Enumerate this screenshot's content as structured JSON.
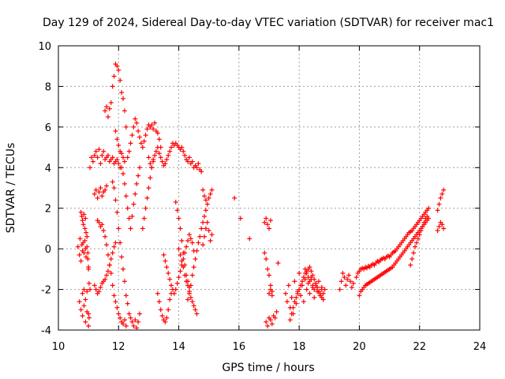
{
  "chart_data": {
    "type": "scatter",
    "title": "Day 129 of 2024, Sidereal Day-to-day VTEC variation (SDTVAR) for receiver mac1",
    "xlabel": "GPS time / hours",
    "ylabel": "SDTVAR / TECUs",
    "xlim": [
      10,
      24
    ],
    "ylim": [
      -4,
      10
    ],
    "xticks": [
      "10",
      "12",
      "14",
      "16",
      "18",
      "20",
      "22",
      "24"
    ],
    "yticks": [
      "-4",
      "-2",
      "0",
      "2",
      "4",
      "6",
      "8",
      "10"
    ],
    "grid": true,
    "marker": "plus",
    "color": "#ff0000",
    "series": [
      {
        "name": "SDTVAR",
        "x": [
          10.65,
          10.7,
          10.72,
          10.75,
          10.78,
          10.8,
          10.82,
          10.85,
          10.88,
          10.9,
          10.92,
          10.95,
          10.98,
          11.0,
          10.7,
          10.75,
          10.8,
          10.85,
          10.9,
          10.95,
          11.0,
          11.02,
          10.75,
          10.78,
          10.8,
          10.83,
          10.85,
          10.88,
          10.9,
          10.92,
          10.95,
          10.98,
          11.0,
          11.02,
          11.05,
          10.8,
          10.85,
          10.9,
          10.95,
          11.0,
          11.05,
          11.1,
          11.15,
          11.2,
          11.25,
          11.3,
          11.35,
          11.4,
          11.45,
          11.5,
          11.55,
          11.6,
          11.65,
          11.7,
          11.75,
          11.8,
          11.85,
          11.9,
          11.95,
          12.0,
          12.05,
          11.2,
          11.25,
          11.3,
          11.35,
          11.4,
          11.45,
          11.5,
          11.55,
          11.6,
          11.3,
          11.35,
          11.4,
          11.45,
          11.5,
          11.55,
          11.6,
          11.65,
          11.7,
          11.75,
          11.8,
          11.85,
          11.9,
          11.95,
          12.0,
          12.05,
          12.1,
          12.15,
          12.2,
          12.25,
          11.2,
          11.25,
          11.3,
          11.35,
          11.4,
          11.45,
          11.5,
          11.55,
          11.6,
          11.65,
          11.7,
          11.75,
          11.8,
          11.85,
          11.9,
          11.55,
          11.6,
          11.65,
          11.7,
          11.75,
          11.8,
          11.85,
          11.9,
          11.95,
          12.0,
          12.05,
          12.1,
          12.15,
          12.2,
          12.25,
          11.8,
          11.85,
          11.9,
          11.95,
          12.0,
          12.05,
          12.1,
          12.15,
          12.2,
          12.25,
          12.3,
          12.35,
          12.4,
          12.45,
          12.5,
          12.55,
          12.6,
          12.65,
          12.7,
          12.1,
          12.15,
          12.2,
          12.25,
          12.3,
          12.35,
          12.4,
          12.45,
          12.5,
          12.55,
          12.6,
          12.65,
          12.7,
          11.9,
          11.95,
          12.0,
          12.05,
          12.1,
          12.15,
          12.2,
          12.3,
          12.35,
          12.4,
          12.45,
          12.5,
          12.55,
          12.6,
          12.65,
          12.7,
          12.75,
          12.8,
          12.85,
          12.9,
          12.95,
          13.0,
          13.05,
          13.1,
          13.15,
          13.2,
          13.25,
          13.3,
          13.35,
          13.4,
          12.8,
          12.85,
          12.9,
          12.95,
          13.0,
          13.05,
          13.1,
          13.15,
          13.0,
          13.05,
          13.1,
          13.15,
          13.2,
          13.25,
          13.3,
          13.35,
          13.4,
          13.45,
          13.5,
          13.55,
          13.6,
          13.65,
          13.7,
          13.75,
          13.8,
          13.85,
          13.9,
          13.95,
          14.0,
          14.05,
          14.1,
          14.15,
          14.2,
          14.25,
          14.3,
          14.35,
          14.4,
          14.45,
          14.5,
          14.55,
          14.6,
          14.65,
          14.7,
          14.75,
          14.8,
          14.85,
          14.9,
          13.3,
          13.35,
          13.4,
          13.45,
          13.5,
          13.55,
          13.6,
          13.65,
          13.7,
          13.75,
          13.5,
          13.55,
          13.6,
          13.65,
          13.7,
          13.75,
          13.8,
          13.85,
          13.9,
          13.95,
          14.0,
          14.05,
          14.1,
          14.15,
          14.2,
          14.25,
          14.3,
          14.35,
          14.4,
          14.45,
          14.5,
          13.9,
          13.95,
          14.0,
          14.05,
          14.1,
          14.15,
          14.2,
          14.25,
          14.3,
          14.35,
          14.0,
          14.05,
          14.1,
          14.15,
          14.2,
          14.25,
          14.3,
          14.35,
          14.4,
          14.45,
          14.5,
          14.55,
          14.6,
          14.3,
          14.35,
          14.4,
          14.45,
          14.5,
          14.55,
          14.6,
          14.65,
          14.7,
          14.75,
          14.8,
          14.85,
          14.9,
          14.95,
          15.0,
          15.05,
          15.1,
          14.8,
          14.85,
          14.9,
          14.95,
          15.0,
          15.05,
          15.1,
          15.85,
          16.05,
          16.35,
          16.85,
          16.9,
          16.95,
          17.0,
          17.05,
          17.1,
          16.85,
          16.9,
          16.95,
          17.0,
          17.05,
          16.9,
          16.95,
          17.0,
          17.05,
          17.1,
          17.15,
          17.2,
          17.25,
          17.3,
          17.0,
          17.05,
          17.1,
          17.55,
          17.6,
          17.65,
          17.7,
          17.75,
          17.8,
          17.85,
          17.9,
          17.95,
          18.0,
          18.05,
          18.1,
          18.15,
          18.2,
          18.25,
          18.3,
          18.35,
          18.4,
          18.45,
          18.5,
          18.55,
          18.6,
          18.65,
          18.7,
          18.75,
          18.8,
          18.85,
          17.7,
          17.75,
          17.8,
          17.85,
          17.9,
          17.95,
          18.0,
          18.05,
          18.1,
          18.15,
          18.2,
          18.25,
          18.3,
          18.35,
          18.4,
          18.45,
          18.5,
          18.55,
          18.6,
          18.65,
          18.7,
          18.75,
          18.8,
          18.2,
          18.25,
          18.3,
          18.35,
          18.4,
          18.45,
          18.5,
          18.55,
          18.6,
          18.65,
          18.7,
          18.75,
          19.35,
          19.4,
          19.45,
          19.5,
          19.55,
          19.6,
          19.65,
          19.7,
          19.75,
          19.8,
          19.9,
          19.95,
          20.0,
          20.05,
          20.1,
          20.15,
          20.2,
          20.25,
          20.3,
          20.35,
          20.4,
          20.45,
          20.5,
          20.55,
          20.6,
          20.65,
          20.7,
          20.75,
          20.8,
          20.85,
          20.9,
          20.95,
          21.0,
          21.05,
          21.1,
          21.15,
          21.2,
          21.25,
          21.3,
          21.35,
          21.4,
          21.45,
          21.5,
          21.55,
          21.6,
          21.65,
          21.7,
          21.75,
          21.8,
          21.85,
          21.9,
          21.95,
          22.0,
          22.05,
          22.1,
          22.15,
          22.2,
          22.25,
          22.3,
          20.0,
          20.05,
          20.1,
          20.15,
          20.2,
          20.25,
          20.3,
          20.35,
          20.4,
          20.45,
          20.5,
          20.55,
          20.6,
          20.65,
          20.7,
          20.75,
          20.8,
          20.85,
          20.9,
          20.95,
          21.0,
          21.05,
          21.1,
          21.15,
          21.2,
          21.25,
          21.3,
          21.35,
          21.4,
          21.45,
          21.5,
          21.55,
          21.6,
          21.65,
          21.7,
          21.75,
          21.8,
          21.85,
          21.9,
          21.95,
          22.0,
          22.05,
          22.1,
          22.15,
          22.2,
          22.25,
          22.3,
          21.7,
          21.75,
          21.8,
          21.85,
          21.9,
          21.95,
          22.0,
          22.05,
          22.1,
          22.15,
          22.2,
          22.25,
          22.6,
          22.65,
          22.7,
          22.75,
          22.8,
          22.6,
          22.65,
          22.7,
          22.75,
          22.8
        ],
        "y": [
          0.1,
          -0.3,
          0.5,
          -0.6,
          0.2,
          -0.1,
          0.3,
          -0.2,
          0.4,
          0.0,
          -0.4,
          0.1,
          -0.5,
          -0.9,
          -2.6,
          -3.0,
          -3.3,
          -2.8,
          -3.6,
          -3.1,
          -3.8,
          -3.4,
          1.8,
          1.6,
          1.4,
          1.2,
          1.7,
          1.0,
          1.5,
          0.8,
          0.6,
          -0.2,
          -1.0,
          -1.7,
          -2.0,
          -2.2,
          -2.0,
          -2.5,
          -2.1,
          -3.2,
          4.0,
          4.5,
          4.3,
          4.6,
          4.8,
          4.5,
          4.9,
          4.2,
          4.6,
          4.8,
          4.4,
          4.5,
          4.6,
          4.3,
          4.4,
          4.5,
          4.2,
          4.3,
          4.4,
          4.2,
          4.0,
          2.7,
          2.9,
          2.5,
          2.8,
          3.0,
          2.6,
          2.8,
          2.9,
          3.1,
          1.4,
          1.3,
          1.1,
          1.2,
          0.9,
          0.6,
          0.2,
          -0.3,
          -0.8,
          -1.2,
          -1.8,
          -2.3,
          -2.6,
          -2.9,
          -3.2,
          -3.4,
          -3.6,
          -3.7,
          -3.5,
          -3.8,
          -1.8,
          -2.0,
          -2.2,
          -2.1,
          -1.9,
          -1.7,
          -1.6,
          -1.5,
          -1.3,
          -1.1,
          -0.8,
          -0.5,
          -0.2,
          0.1,
          0.3,
          6.8,
          7.0,
          6.5,
          6.9,
          7.2,
          8.0,
          8.5,
          9.1,
          9.0,
          8.8,
          8.3,
          7.7,
          7.4,
          6.8,
          6.0,
          3.3,
          3.0,
          2.4,
          1.8,
          1.0,
          0.3,
          -0.4,
          -1.0,
          -1.6,
          -2.3,
          -2.7,
          -3.2,
          -3.4,
          -3.6,
          -3.8,
          -3.5,
          -3.9,
          -3.6,
          -3.2,
          4.0,
          3.7,
          3.2,
          2.6,
          2.0,
          1.5,
          1.0,
          1.6,
          2.2,
          2.7,
          3.2,
          3.6,
          4.0,
          5.8,
          5.4,
          5.1,
          4.8,
          4.7,
          4.5,
          4.3,
          4.5,
          4.8,
          5.2,
          5.6,
          6.0,
          6.4,
          6.2,
          5.8,
          5.5,
          5.2,
          5.0,
          5.3,
          5.6,
          5.9,
          6.1,
          6.0,
          6.1,
          5.9,
          6.2,
          5.8,
          5.7,
          5.4,
          5.0,
          1.0,
          1.5,
          2.0,
          2.5,
          3.0,
          3.5,
          4.0,
          4.4,
          4.5,
          4.2,
          4.0,
          4.3,
          4.6,
          4.8,
          5.0,
          4.7,
          4.5,
          4.3,
          4.1,
          4.2,
          4.4,
          4.6,
          4.8,
          5.0,
          5.2,
          5.1,
          5.2,
          5.1,
          5.0,
          4.9,
          5.0,
          4.8,
          4.6,
          4.4,
          4.3,
          4.5,
          4.2,
          4.3,
          4.0,
          4.1,
          4.0,
          4.2,
          3.9,
          3.8,
          2.9,
          2.6,
          2.4,
          -2.2,
          -2.6,
          -3.0,
          -3.3,
          -3.5,
          -3.6,
          -3.4,
          -3.0,
          -2.5,
          -2.2,
          -0.3,
          -0.6,
          -0.9,
          -1.2,
          -1.5,
          -1.8,
          -2.0,
          -2.2,
          -2.0,
          -1.7,
          -1.4,
          -1.1,
          -0.8,
          -0.5,
          -0.2,
          0.1,
          0.4,
          0.7,
          0.5,
          0.3,
          -0.1,
          2.3,
          1.9,
          1.5,
          1.0,
          0.4,
          -0.2,
          -0.8,
          -1.3,
          -1.6,
          -1.9,
          0.0,
          -0.3,
          -0.6,
          -0.9,
          -1.3,
          -1.6,
          -1.8,
          -2.1,
          -2.4,
          -2.6,
          -2.8,
          -3.0,
          -3.2,
          -2.5,
          -2.2,
          -1.8,
          -1.3,
          -0.9,
          -0.5,
          -0.1,
          0.3,
          0.6,
          1.0,
          1.3,
          1.6,
          1.9,
          2.2,
          2.5,
          2.7,
          2.9,
          0.2,
          0.6,
          1.0,
          1.3,
          0.9,
          0.4,
          0.7,
          2.5,
          1.5,
          0.5,
          -0.2,
          -0.5,
          -1.0,
          -1.3,
          -1.8,
          -2.1,
          1.3,
          1.5,
          1.2,
          1.0,
          1.4,
          -3.6,
          -3.8,
          -3.4,
          -3.5,
          -3.7,
          -3.3,
          -3.4,
          -3.1,
          -0.7,
          -2.2,
          -2.0,
          -2.3,
          -2.2,
          -2.6,
          -1.8,
          -2.9,
          -2.4,
          -3.2,
          -1.6,
          -2.7,
          -2.1,
          -1.2,
          -2.3,
          -1.8,
          -2.6,
          -1.5,
          -2.0,
          -1.7,
          -2.2,
          -1.4,
          -1.9,
          -2.4,
          -1.8,
          -2.1,
          -1.6,
          -2.3,
          -1.9,
          -2.2,
          -2.0,
          -3.5,
          -3.2,
          -2.9,
          -2.6,
          -2.4,
          -2.2,
          -2.0,
          -1.8,
          -1.6,
          -1.4,
          -1.2,
          -1.1,
          -1.0,
          -0.9,
          -1.1,
          -1.3,
          -1.5,
          -1.7,
          -1.9,
          -2.1,
          -2.3,
          -2.4,
          -2.5,
          -1.0,
          -1.2,
          -1.4,
          -1.6,
          -1.5,
          -1.8,
          -2.0,
          -1.7,
          -1.9,
          -2.1,
          -2.2,
          -2.0,
          -2.0,
          -1.6,
          -1.2,
          -1.4,
          -1.8,
          -1.5,
          -1.3,
          -1.6,
          -1.9,
          -1.7,
          -1.4,
          -1.2,
          -1.1,
          -1.0,
          -0.95,
          -1.0,
          -0.9,
          -0.95,
          -0.85,
          -0.9,
          -0.8,
          -0.75,
          -0.8,
          -0.7,
          -0.6,
          -0.65,
          -0.55,
          -0.5,
          -0.45,
          -0.5,
          -0.4,
          -0.35,
          -0.4,
          -0.3,
          -0.2,
          -0.15,
          -0.1,
          0.0,
          0.1,
          0.2,
          0.3,
          0.4,
          0.5,
          0.6,
          0.7,
          0.8,
          0.85,
          0.9,
          1.0,
          1.1,
          1.2,
          1.3,
          1.4,
          1.5,
          1.6,
          1.7,
          1.8,
          1.9,
          2.0,
          -2.3,
          -2.1,
          -2.0,
          -1.9,
          -1.8,
          -1.75,
          -1.7,
          -1.65,
          -1.6,
          -1.55,
          -1.5,
          -1.45,
          -1.4,
          -1.35,
          -1.3,
          -1.25,
          -1.2,
          -1.15,
          -1.1,
          -1.05,
          -1.0,
          -0.95,
          -0.9,
          -0.8,
          -0.7,
          -0.6,
          -0.5,
          -0.4,
          -0.3,
          -0.2,
          -0.1,
          0.0,
          0.1,
          0.2,
          0.3,
          0.4,
          0.5,
          0.6,
          0.7,
          0.8,
          0.9,
          1.0,
          1.1,
          1.2,
          1.3,
          1.4,
          1.5,
          -0.8,
          -0.5,
          -0.2,
          0.1,
          0.3,
          0.5,
          0.7,
          0.9,
          1.1,
          1.3,
          1.5,
          1.6,
          1.9,
          2.2,
          2.5,
          2.7,
          2.9,
          0.9,
          1.1,
          1.3,
          1.2,
          1.0
        ]
      }
    ]
  }
}
